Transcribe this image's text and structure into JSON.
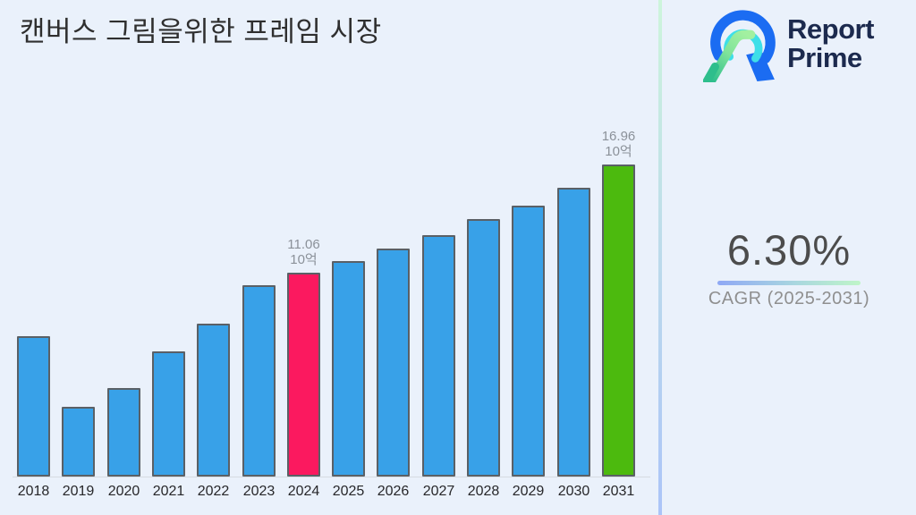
{
  "page": {
    "background": "#EAF1FB"
  },
  "header": {
    "title": "캔버스 그림을위한 프레임 시장"
  },
  "brand": {
    "line1": "Report",
    "line2": "Prime",
    "text_color": "#1C2A4E",
    "mark_colors": {
      "blue": "#1B6CF2",
      "cyan": "#3EDFE8",
      "light_green": "#A2F0A0",
      "teal": "#2EBE8C"
    }
  },
  "stat": {
    "value": "6.30%",
    "label": "CAGR (2025-2031)",
    "underline_gradient": [
      "#8FA8F5",
      "#BFF5C8"
    ]
  },
  "divider_gradient": [
    "#CDF5DB",
    "#ABC4F8"
  ],
  "chart_data": {
    "type": "bar",
    "title": "캔버스 그림을위한 프레임 시장",
    "categories": [
      "2018",
      "2019",
      "2020",
      "2021",
      "2022",
      "2023",
      "2024",
      "2025",
      "2026",
      "2027",
      "2028",
      "2029",
      "2030",
      "2031"
    ],
    "values": [
      7.6,
      3.8,
      4.8,
      6.8,
      8.3,
      10.4,
      11.06,
      11.7,
      12.4,
      13.1,
      14.0,
      14.7,
      15.7,
      16.96
    ],
    "unit_label": "10억",
    "data_labels": [
      {
        "category": "2024",
        "lines": [
          "11.06",
          "10억"
        ]
      },
      {
        "category": "2031",
        "lines": [
          "16.96",
          "10억"
        ]
      }
    ],
    "highlight_colors": {
      "2024": "#FB195F",
      "2031": "#4CBA0E"
    },
    "bar_color_default": "#38A1E8",
    "bar_border_color": "#5A6066",
    "xlabel": "",
    "ylabel": "",
    "value_axis_visible": false,
    "grid": false,
    "legend": false
  }
}
